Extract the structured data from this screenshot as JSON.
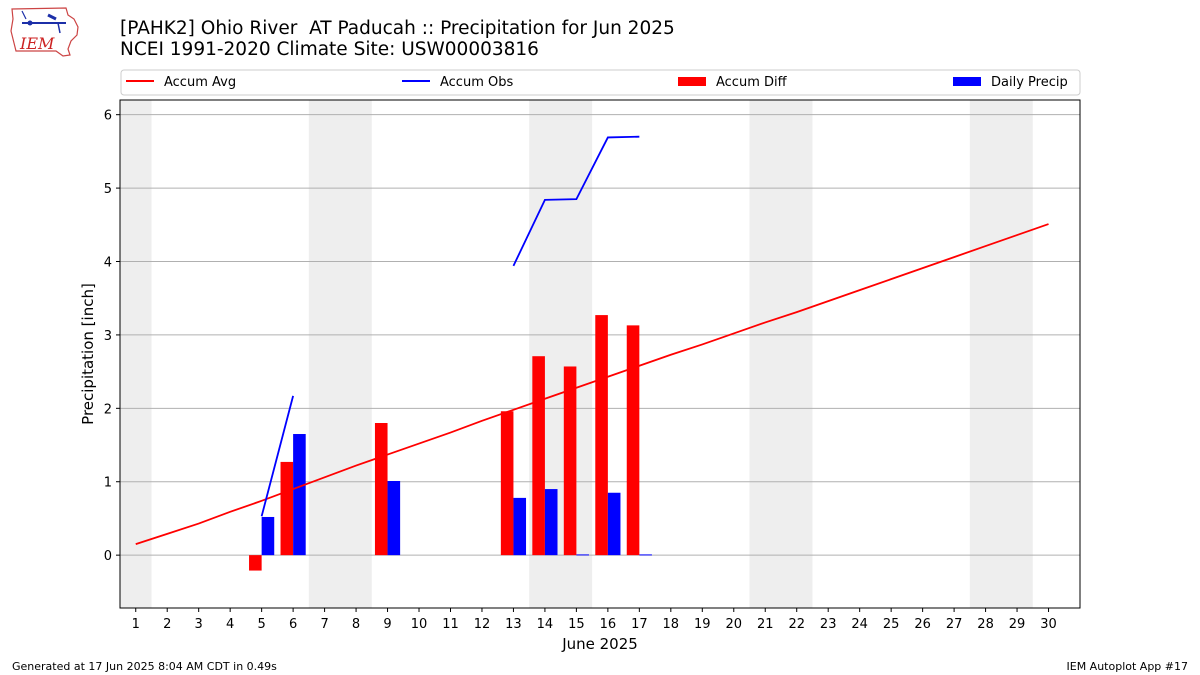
{
  "header": {
    "title_line1": "[PAHK2] Ohio River  AT Paducah :: Precipitation for Jun 2025",
    "title_line2": "NCEI 1991-2020 Climate Site: USW00003816"
  },
  "logo": {
    "text": "IEM",
    "icon": "iem-iowa-logo-icon"
  },
  "footer": {
    "left": "Generated at 17 Jun 2025 8:04 AM CDT in 0.49s",
    "right": "IEM Autoplot App #17"
  },
  "colors": {
    "avg": "#ff0000",
    "obs": "#0000ff",
    "diff": "#ff0000",
    "daily": "#0000ff",
    "weekend": "#eeeeee",
    "grid": "#b0b0b0"
  },
  "chart_data": {
    "type": "bar",
    "xlabel": "June 2025",
    "ylabel": "Precipitation [inch]",
    "ylim": [
      -0.72,
      6.2
    ],
    "xlim": [
      0.5,
      31.0
    ],
    "yticks": [
      0,
      1,
      2,
      3,
      4,
      5,
      6
    ],
    "days": [
      1,
      2,
      3,
      4,
      5,
      6,
      7,
      8,
      9,
      10,
      11,
      12,
      13,
      14,
      15,
      16,
      17,
      18,
      19,
      20,
      21,
      22,
      23,
      24,
      25,
      26,
      27,
      28,
      29,
      30
    ],
    "grid": "horizontal",
    "weekend_bands": [
      [
        0.5,
        1.5
      ],
      [
        6.5,
        8.5
      ],
      [
        13.5,
        15.5
      ],
      [
        20.5,
        22.5
      ],
      [
        27.5,
        29.5
      ]
    ],
    "legend": [
      "Accum Avg",
      "Accum Obs",
      "Accum Diff",
      "Daily Precip"
    ],
    "legend_placement": "top",
    "series": [
      {
        "name": "Accum Avg",
        "kind": "line",
        "color": "#ff0000",
        "x": [
          1,
          2,
          3,
          4,
          5,
          6,
          7,
          8,
          9,
          10,
          11,
          12,
          13,
          14,
          15,
          16,
          17,
          18,
          19,
          20,
          21,
          22,
          23,
          24,
          25,
          26,
          27,
          28,
          29,
          30
        ],
        "values": [
          0.15,
          0.29,
          0.43,
          0.59,
          0.74,
          0.9,
          1.06,
          1.22,
          1.37,
          1.52,
          1.67,
          1.83,
          1.98,
          2.13,
          2.28,
          2.43,
          2.58,
          2.73,
          2.87,
          3.02,
          3.17,
          3.31,
          3.46,
          3.61,
          3.76,
          3.91,
          4.06,
          4.21,
          4.36,
          4.51
        ]
      },
      {
        "name": "Accum Obs",
        "kind": "line",
        "color": "#0000ff",
        "segments": [
          {
            "x": [
              5,
              6
            ],
            "values": [
              0.53,
              2.17
            ]
          },
          {
            "x": [
              13,
              14,
              15,
              16,
              17
            ],
            "values": [
              3.94,
              4.84,
              4.85,
              5.69,
              5.7
            ]
          }
        ]
      },
      {
        "name": "Accum Diff",
        "kind": "bar",
        "color": "#ff0000",
        "offset": -0.2,
        "x": [
          5,
          6,
          9,
          13,
          14,
          15,
          16,
          17
        ],
        "values": [
          -0.21,
          1.27,
          1.8,
          1.96,
          2.71,
          2.57,
          3.27,
          3.13
        ]
      },
      {
        "name": "Daily Precip",
        "kind": "bar",
        "color": "#0000ff",
        "offset": 0.2,
        "x": [
          5,
          6,
          9,
          13,
          14,
          15,
          16,
          17
        ],
        "values": [
          0.52,
          1.65,
          1.01,
          0.78,
          0.9,
          0.01,
          0.85,
          0.01
        ]
      }
    ]
  }
}
